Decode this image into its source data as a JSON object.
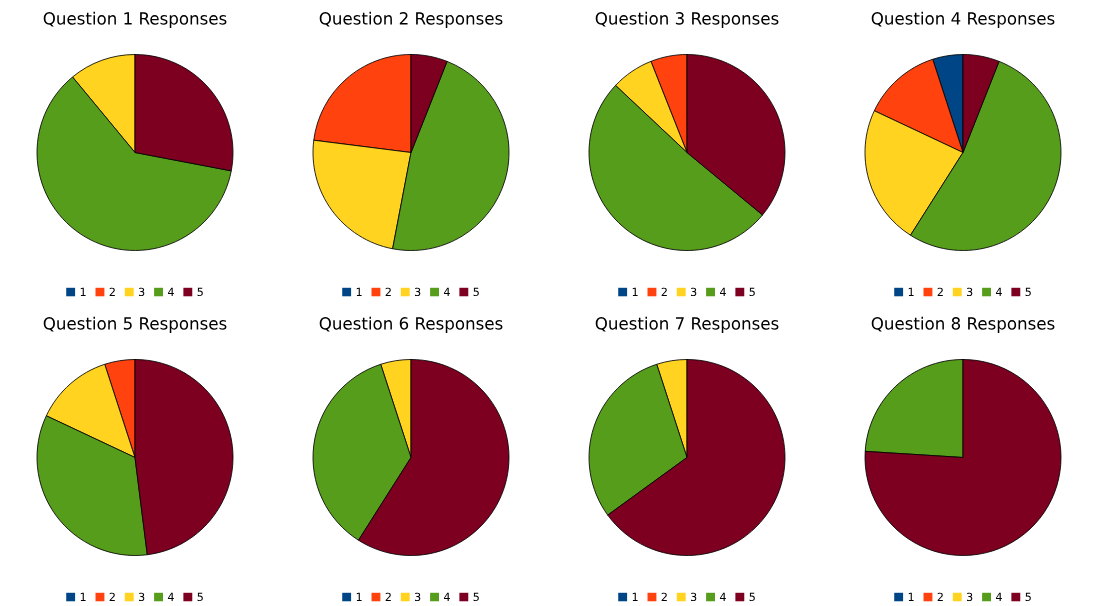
{
  "chart_data": [
    {
      "type": "pie",
      "title": "Question 1 Responses",
      "categories": [
        "1",
        "2",
        "3",
        "4",
        "5"
      ],
      "values": [
        0,
        0,
        11,
        61,
        28
      ],
      "colors": [
        "#004586",
        "#ff420e",
        "#ffd320",
        "#579d1c",
        "#7e0021"
      ],
      "legend": "bottom"
    },
    {
      "type": "pie",
      "title": "Question 2 Responses",
      "categories": [
        "1",
        "2",
        "3",
        "4",
        "5"
      ],
      "values": [
        0,
        23,
        24,
        47,
        6
      ],
      "colors": [
        "#004586",
        "#ff420e",
        "#ffd320",
        "#579d1c",
        "#7e0021"
      ],
      "legend": "bottom"
    },
    {
      "type": "pie",
      "title": "Question 3 Responses",
      "categories": [
        "1",
        "2",
        "3",
        "4",
        "5"
      ],
      "values": [
        0,
        6,
        7,
        51,
        36
      ],
      "colors": [
        "#004586",
        "#ff420e",
        "#ffd320",
        "#579d1c",
        "#7e0021"
      ],
      "legend": "bottom"
    },
    {
      "type": "pie",
      "title": "Question 4 Responses",
      "categories": [
        "1",
        "2",
        "3",
        "4",
        "5"
      ],
      "values": [
        5,
        13,
        23,
        53,
        6
      ],
      "colors": [
        "#004586",
        "#ff420e",
        "#ffd320",
        "#579d1c",
        "#7e0021"
      ],
      "legend": "bottom"
    },
    {
      "type": "pie",
      "title": "Question 5 Responses",
      "categories": [
        "1",
        "2",
        "3",
        "4",
        "5"
      ],
      "values": [
        0,
        5,
        13,
        34,
        48
      ],
      "colors": [
        "#004586",
        "#ff420e",
        "#ffd320",
        "#579d1c",
        "#7e0021"
      ],
      "legend": "bottom"
    },
    {
      "type": "pie",
      "title": "Question 6 Responses",
      "categories": [
        "1",
        "2",
        "3",
        "4",
        "5"
      ],
      "values": [
        0,
        0,
        5,
        36,
        59
      ],
      "colors": [
        "#004586",
        "#ff420e",
        "#ffd320",
        "#579d1c",
        "#7e0021"
      ],
      "legend": "bottom"
    },
    {
      "type": "pie",
      "title": "Question 7 Responses",
      "categories": [
        "1",
        "2",
        "3",
        "4",
        "5"
      ],
      "values": [
        0,
        0,
        5,
        30,
        65
      ],
      "colors": [
        "#004586",
        "#ff420e",
        "#ffd320",
        "#579d1c",
        "#7e0021"
      ],
      "legend": "bottom"
    },
    {
      "type": "pie",
      "title": "Question 8 Responses",
      "categories": [
        "1",
        "2",
        "3",
        "4",
        "5"
      ],
      "values": [
        0,
        0,
        0,
        24,
        76
      ],
      "colors": [
        "#004586",
        "#ff420e",
        "#ffd320",
        "#579d1c",
        "#7e0021"
      ],
      "legend": "bottom"
    }
  ]
}
